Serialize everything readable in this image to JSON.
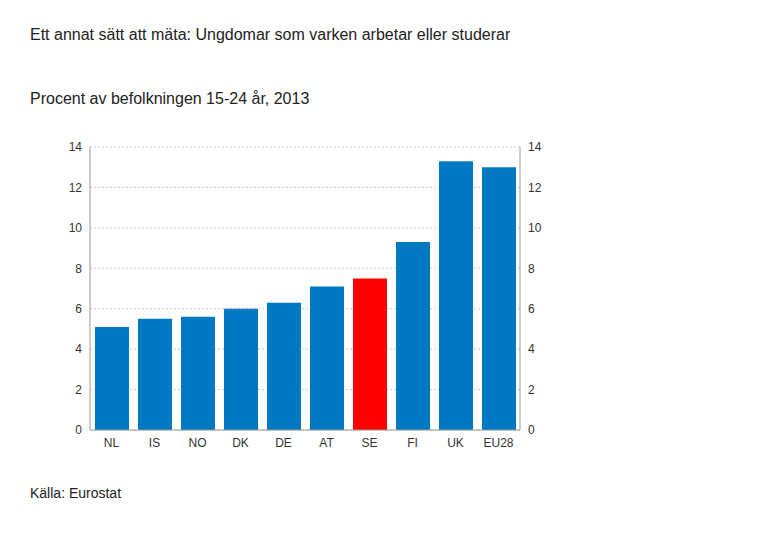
{
  "chart_data": {
    "type": "bar",
    "title": "Ett annat sätt att mäta: Ungdomar som varken arbetar eller studerar",
    "subtitle": "Procent av befolkningen 15-24 år, 2013",
    "source": "Källa: Eurostat",
    "categories": [
      "NL",
      "IS",
      "NO",
      "DK",
      "DE",
      "AT",
      "SE",
      "FI",
      "UK",
      "EU28"
    ],
    "values": [
      5.1,
      5.5,
      5.6,
      6.0,
      6.3,
      7.1,
      7.5,
      9.3,
      13.3,
      13.0
    ],
    "colors": [
      "#0079c2",
      "#0079c2",
      "#0079c2",
      "#0079c2",
      "#0079c2",
      "#0079c2",
      "#ff0000",
      "#0079c2",
      "#0079c2",
      "#0079c2"
    ],
    "ylim": [
      0,
      14
    ],
    "yticks": [
      0,
      2,
      4,
      6,
      8,
      10,
      12,
      14
    ],
    "y2lim": [
      0,
      14
    ],
    "y2ticks": [
      0,
      2,
      4,
      6,
      8,
      10,
      12,
      14
    ],
    "grid": true
  }
}
